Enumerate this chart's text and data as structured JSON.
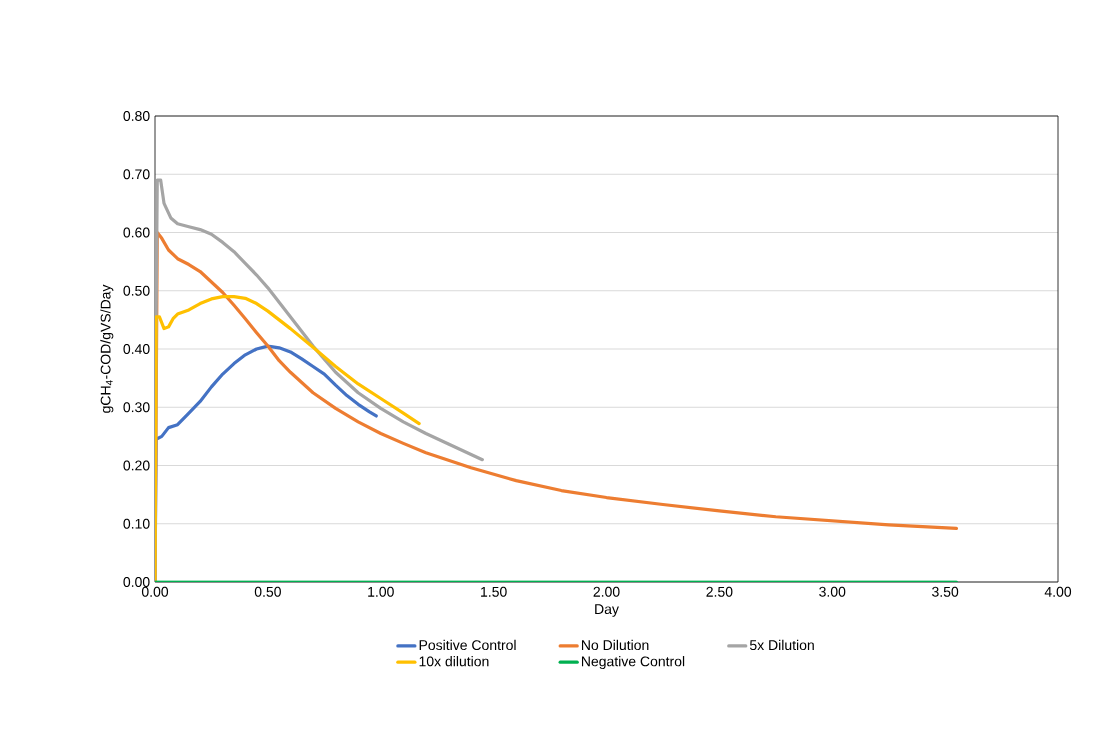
{
  "chart_data": {
    "type": "line",
    "xlabel": "Day",
    "ylabel": "gCH$_{4}$-COD/gVS/Day",
    "xlim": [
      0,
      4
    ],
    "ylim": [
      0,
      0.8
    ],
    "xticks": [
      {
        "value": 0,
        "label": "0.00"
      },
      {
        "value": 0.5,
        "label": "0.50"
      },
      {
        "value": 1,
        "label": "1.00"
      },
      {
        "value": 1.5,
        "label": "1.50"
      },
      {
        "value": 2,
        "label": "2.00"
      },
      {
        "value": 2.5,
        "label": "2.50"
      },
      {
        "value": 3,
        "label": "3.00"
      },
      {
        "value": 3.5,
        "label": "3.50"
      },
      {
        "value": 4,
        "label": "4.00"
      }
    ],
    "yticks": [
      {
        "value": 0,
        "label": "0.00"
      },
      {
        "value": 0.1,
        "label": "0.10"
      },
      {
        "value": 0.2,
        "label": "0.20"
      },
      {
        "value": 0.3,
        "label": "0.30"
      },
      {
        "value": 0.4,
        "label": "0.40"
      },
      {
        "value": 0.5,
        "label": "0.50"
      },
      {
        "value": 0.6,
        "label": "0.60"
      },
      {
        "value": 0.7,
        "label": "0.70"
      },
      {
        "value": 0.8,
        "label": "0.80"
      }
    ],
    "grid": "y",
    "legend": "bottom",
    "marker": "none",
    "line_style": "solid",
    "series": [
      {
        "name": "Positive Control",
        "color": "#4472c4",
        "x": [
          0,
          0.005,
          0.03,
          0.06,
          0.1,
          0.15,
          0.2,
          0.25,
          0.3,
          0.35,
          0.4,
          0.45,
          0.5,
          0.55,
          0.6,
          0.65,
          0.7,
          0.75,
          0.8,
          0.85,
          0.9,
          0.95,
          0.98
        ],
        "values": [
          0,
          0.245,
          0.25,
          0.265,
          0.27,
          0.29,
          0.31,
          0.335,
          0.357,
          0.375,
          0.39,
          0.4,
          0.405,
          0.402,
          0.395,
          0.383,
          0.37,
          0.357,
          0.338,
          0.32,
          0.305,
          0.292,
          0.285
        ]
      },
      {
        "name": "No Dilution",
        "color": "#ed7d31",
        "x": [
          0,
          0.01,
          0.03,
          0.06,
          0.1,
          0.15,
          0.2,
          0.25,
          0.3,
          0.35,
          0.4,
          0.45,
          0.5,
          0.55,
          0.6,
          0.7,
          0.8,
          0.9,
          1.0,
          1.1,
          1.2,
          1.4,
          1.6,
          1.8,
          2.0,
          2.25,
          2.5,
          2.75,
          3.0,
          3.25,
          3.55
        ],
        "values": [
          0,
          0.6,
          0.59,
          0.57,
          0.555,
          0.545,
          0.533,
          0.515,
          0.497,
          0.475,
          0.452,
          0.428,
          0.405,
          0.38,
          0.36,
          0.325,
          0.298,
          0.275,
          0.255,
          0.238,
          0.222,
          0.196,
          0.174,
          0.157,
          0.145,
          0.133,
          0.122,
          0.112,
          0.105,
          0.098,
          0.092
        ]
      },
      {
        "name": "5x Dilution",
        "color": "#a5a5a5",
        "x": [
          0,
          0.005,
          0.01,
          0.025,
          0.04,
          0.07,
          0.1,
          0.15,
          0.2,
          0.25,
          0.3,
          0.35,
          0.4,
          0.45,
          0.5,
          0.55,
          0.6,
          0.65,
          0.7,
          0.8,
          0.9,
          1.0,
          1.1,
          1.2,
          1.3,
          1.45
        ],
        "values": [
          0,
          0.45,
          0.69,
          0.69,
          0.65,
          0.625,
          0.615,
          0.61,
          0.605,
          0.597,
          0.583,
          0.567,
          0.547,
          0.527,
          0.505,
          0.48,
          0.455,
          0.43,
          0.405,
          0.36,
          0.325,
          0.298,
          0.275,
          0.255,
          0.237,
          0.21
        ]
      },
      {
        "name": "10x dilution",
        "color": "#ffc000",
        "x": [
          0,
          0.005,
          0.02,
          0.04,
          0.06,
          0.08,
          0.1,
          0.15,
          0.2,
          0.25,
          0.3,
          0.35,
          0.4,
          0.45,
          0.5,
          0.55,
          0.6,
          0.7,
          0.8,
          0.9,
          1.0,
          1.1,
          1.17
        ],
        "values": [
          0,
          0.455,
          0.455,
          0.435,
          0.438,
          0.452,
          0.46,
          0.467,
          0.478,
          0.486,
          0.49,
          0.49,
          0.487,
          0.478,
          0.465,
          0.45,
          0.435,
          0.403,
          0.37,
          0.34,
          0.315,
          0.29,
          0.272
        ]
      },
      {
        "name": "Negative Control",
        "color": "#00b050",
        "x": [
          0,
          3.55
        ],
        "values": [
          0,
          0
        ]
      }
    ]
  }
}
